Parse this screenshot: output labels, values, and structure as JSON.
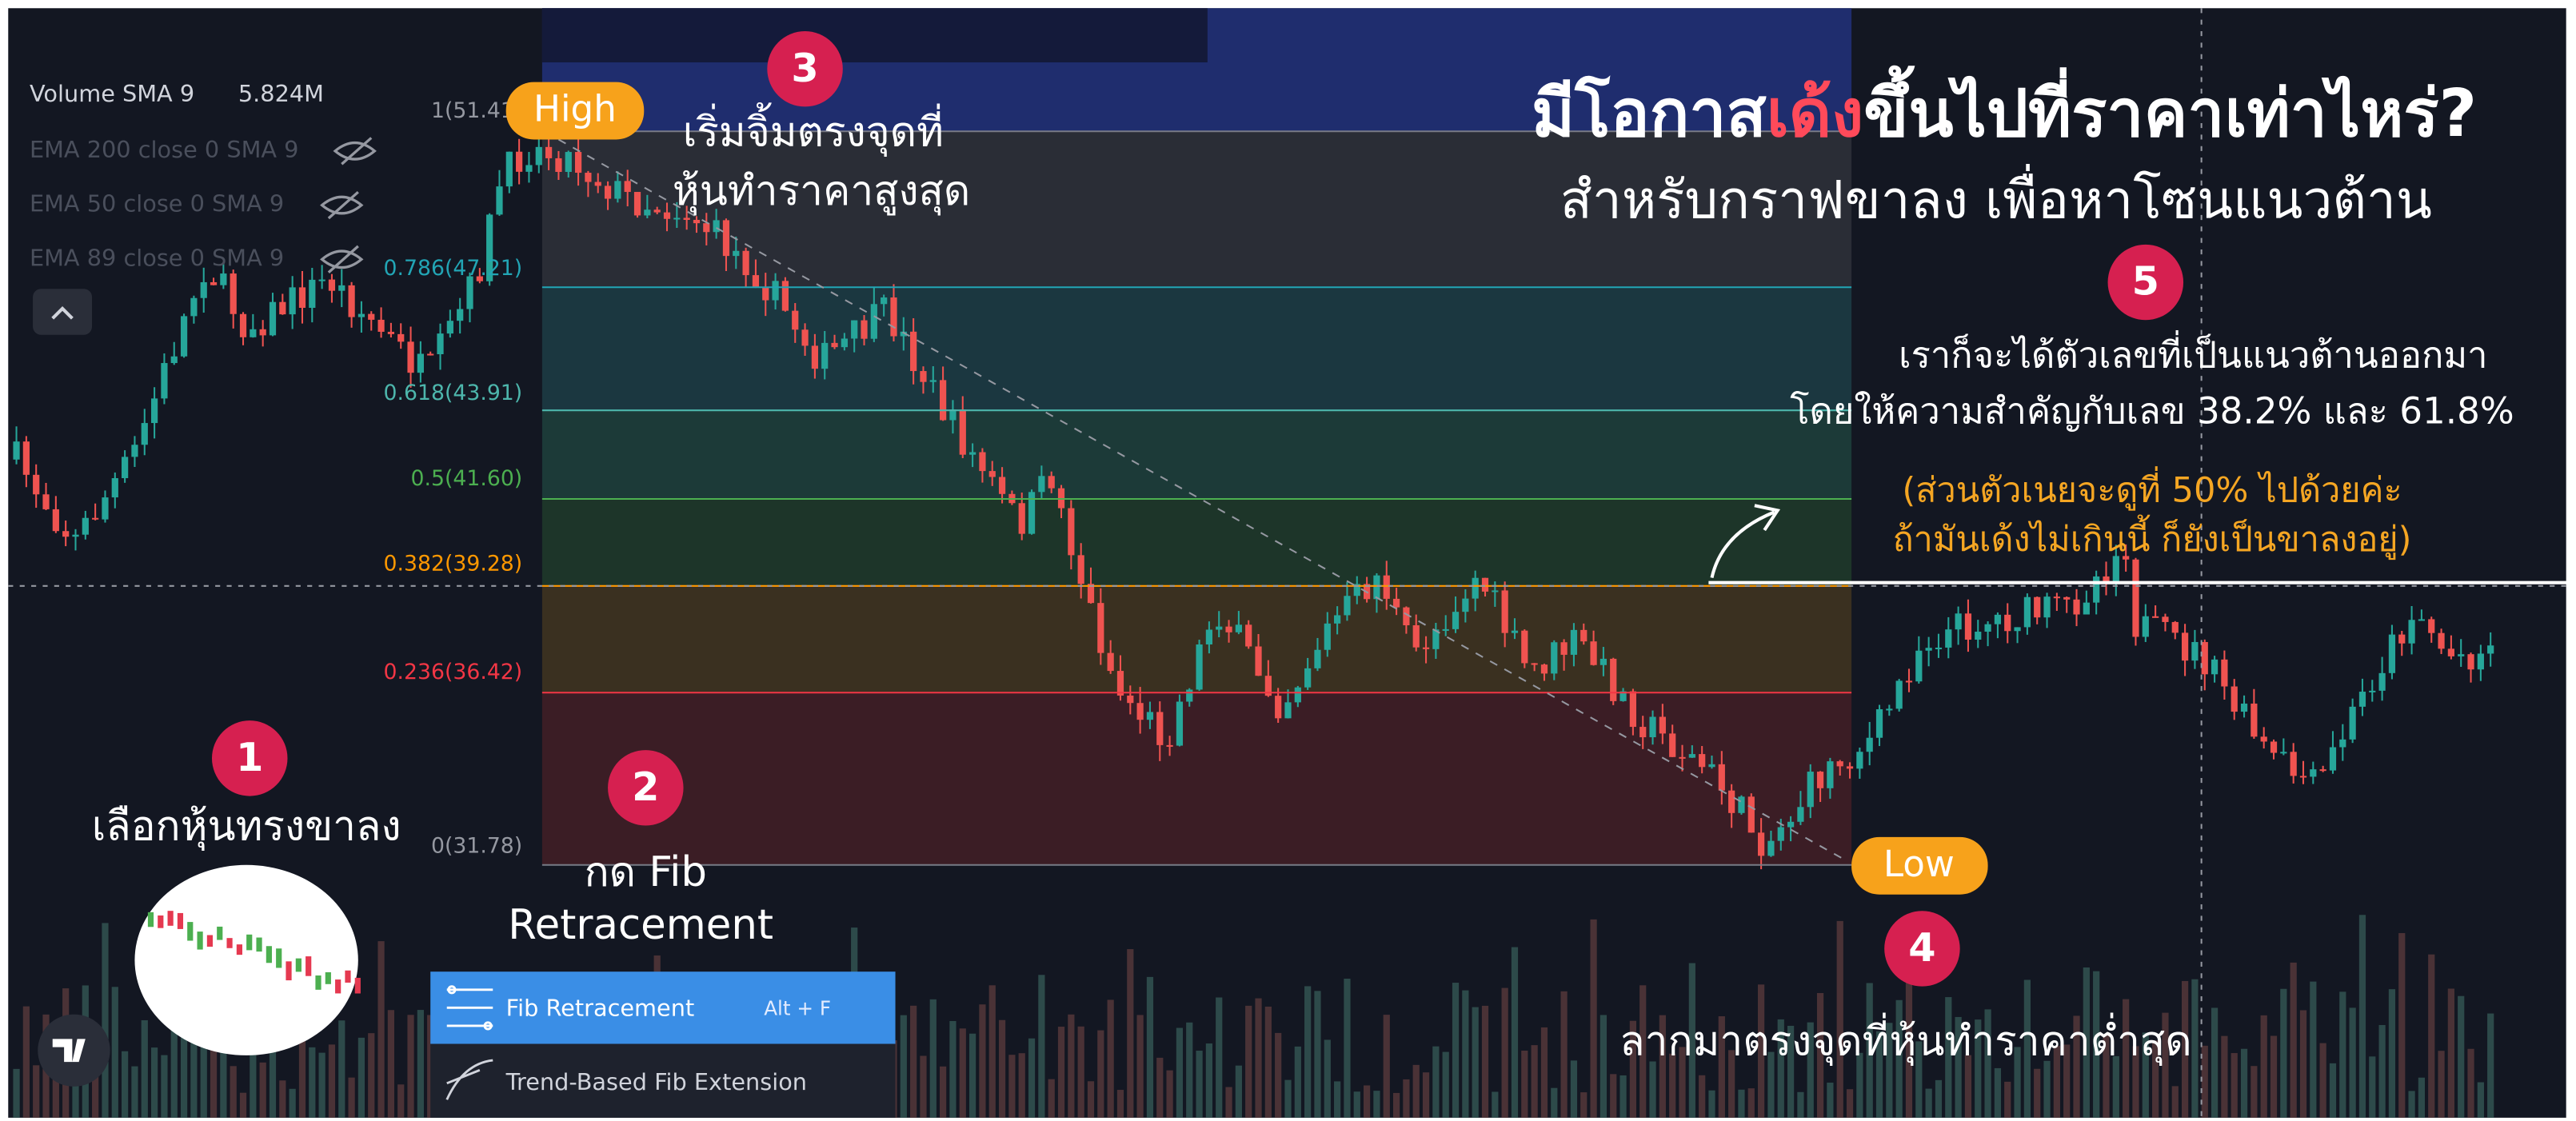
{
  "indicators": [
    {
      "name": "Volume SMA 9",
      "value": "5.824M"
    },
    {
      "name": "EMA 200 close 0 SMA 9"
    },
    {
      "name": "EMA 50 close 0 SMA 9"
    },
    {
      "name": "EMA 89 close 0 SMA 9"
    }
  ],
  "fib_levels": [
    "1(51.41)",
    "0.786(47.21)",
    "0.618(43.91)",
    "0.5(41.60)",
    "0.382(39.28)",
    "0.236(36.42)",
    "0(31.78)"
  ],
  "markers": {
    "high": "High",
    "low": "Low"
  },
  "headline": {
    "parts": [
      "มีโอกาส",
      "เด้ง",
      "ขึ้นไปที่ราคาเท่าไหร่?"
    ],
    "subtitle": "สำหรับกราฟขาลง เพื่อหาโซนแนวต้าน"
  },
  "steps": [
    {
      "number": "1",
      "lines": [
        "เลือกหุ้นทรงขาลง"
      ]
    },
    {
      "number": "2",
      "lines": [
        "กด Fib",
        "Retracement"
      ]
    },
    {
      "number": "3",
      "lines": [
        "เริ่มจิ้มตรงจุดที่",
        "หุ้นทำราคาสูงสุด"
      ]
    },
    {
      "number": "4",
      "lines": [
        "ลากมาตรงจุดที่หุ้นทำราคาต่ำสุด"
      ]
    },
    {
      "number": "5",
      "lines": [
        "เราก็จะได้ตัวเลขที่เป็นแนวต้านออกมา",
        "โดยให้ความสำคัญกับเลข 38.2% และ 61.8%"
      ]
    }
  ],
  "note": [
    "(ส่วนตัวเนยจะดูที่ 50% ไปด้วยค่ะ",
    "ถ้ามันเด้งไม่เกินนี้ ก็ยังเป็นขาลงอยู่)"
  ],
  "menu": [
    {
      "label": "Fib Retracement",
      "shortcut": "Alt + F"
    },
    {
      "label": "Trend-Based Fib Extension"
    }
  ]
}
